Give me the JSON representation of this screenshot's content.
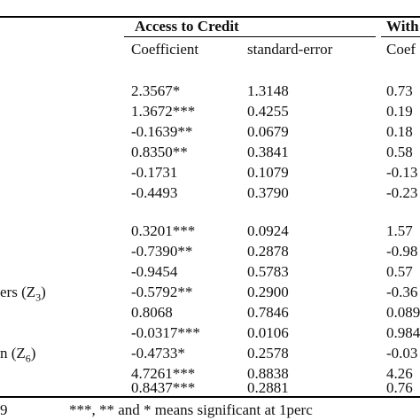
{
  "table": {
    "group_headers": {
      "access_to_credit": "Access to Credit",
      "without_partial": "With"
    },
    "column_headers": {
      "coef": "Coefficient",
      "se": "standard-error",
      "coef_partial": "Coef"
    },
    "block1": [
      {
        "label": "",
        "coef": "2.3567*",
        "se": "1.3148",
        "partial": "0.73"
      },
      {
        "label": "",
        "coef": "1.3672***",
        "se": "0.4255",
        "partial": "0.19"
      },
      {
        "label": "",
        "coef": "-0.1639**",
        "se": "0.0679",
        "partial": "0.18"
      },
      {
        "label": "",
        "coef": "0.8350**",
        "se": "0.3841",
        "partial": "0.58"
      },
      {
        "label": "",
        "coef": "-0.1731",
        "se": "0.1079",
        "partial": "-0.13"
      },
      {
        "label": "",
        "coef": "-0.4493",
        "se": "0.3790",
        "partial": "-0.23"
      }
    ],
    "block2": [
      {
        "label": "",
        "coef": "0.3201***",
        "se": "0.0924",
        "partial": "1.57"
      },
      {
        "label": "",
        "coef": "-0.7390**",
        "se": "0.2878",
        "partial": "-0.98"
      },
      {
        "label": "",
        "coef": "-0.9454",
        "se": "0.5783",
        "partial": "0.57"
      },
      {
        "label": "ers (Z",
        "label_sub": "3",
        "label_end": ")",
        "coef": "-0.5792**",
        "se": "0.2900",
        "partial": "-0.36"
      },
      {
        "label": "",
        "coef": "0.8068",
        "se": "0.7846",
        "partial": "0.089"
      },
      {
        "label": "",
        "coef": "-0.0317***",
        "se": "0.0106",
        "partial": "0.984"
      },
      {
        "label": "n (Z",
        "label_sub": "6",
        "label_end": ")",
        "coef": "-0.4733*",
        "se": "0.2578",
        "partial": "-0.03"
      },
      {
        "label": "",
        "coef": "4.7261***",
        "se": "0.8838",
        "partial": "4.26"
      },
      {
        "label": "",
        "coef": "0.8437***",
        "se": "0.2881",
        "partial": "0.76"
      }
    ]
  },
  "footnote": {
    "left": "9",
    "text": "***,  **  and  *  means  significant  at  1perc"
  }
}
